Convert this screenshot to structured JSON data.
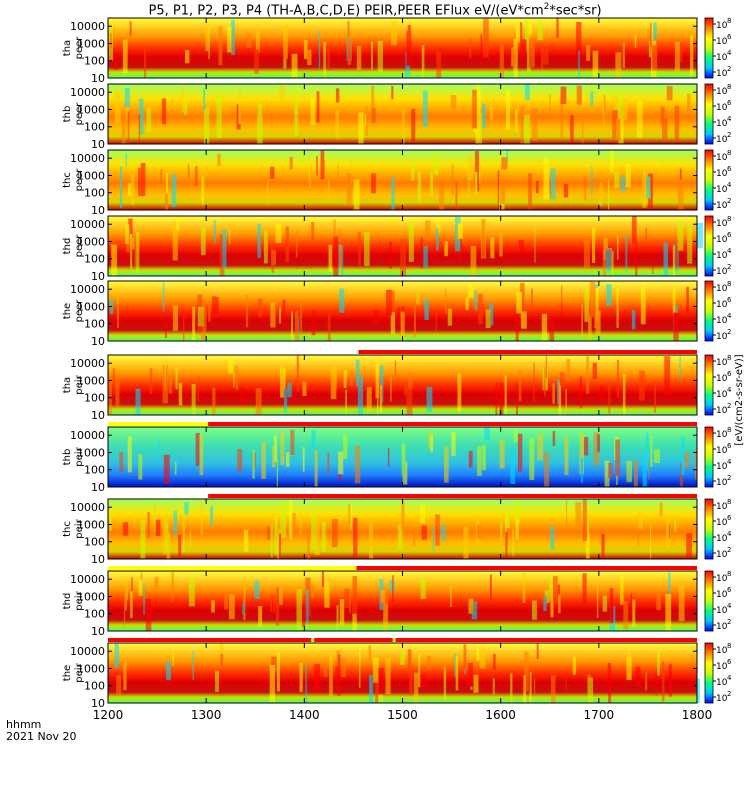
{
  "title": {
    "main": "P5, P1, P2, P3, P4 (TH-A,B,C,D,E) PEIR,PEER EFlux eV/(eV*cm",
    "sup": "2",
    "tail": "*sec*sr)"
  },
  "footer": {
    "time_label": "hhmm",
    "date_label": "2021 Nov 20"
  },
  "colorbar": {
    "unit_label": "[eV/(cm2-s-sr-eV)]",
    "tick_labels": [
      "10",
      "10",
      "10",
      "10"
    ],
    "tick_exponents": [
      "8",
      "6",
      "4",
      "2"
    ]
  },
  "chart_data": {
    "type": "heatmap",
    "x_axis": {
      "label": "hhmm",
      "range": [
        1200,
        1800
      ],
      "ticks": [
        1200,
        1300,
        1400,
        1500,
        1600,
        1700,
        1800
      ],
      "tick_labels": [
        "1200",
        "1300",
        "1400",
        "1500",
        "1600",
        "1700",
        "1800"
      ]
    },
    "y_axis": {
      "scale": "log",
      "range": [
        10,
        30000
      ],
      "ticks": [
        10,
        100,
        1000,
        10000
      ],
      "tick_labels": [
        "10",
        "100",
        "1000",
        "10000"
      ]
    },
    "color_scale": {
      "scale": "log",
      "range": [
        100,
        100000000
      ],
      "colors": [
        "#0000ff",
        "#00c8ff",
        "#00ff80",
        "#c8ff00",
        "#ffff00",
        "#ff8000",
        "#ff0000"
      ]
    },
    "panels": [
      {
        "probe": "tha",
        "species": "peer",
        "label": "tha peer",
        "baseline_level": "high",
        "flag_bar": []
      },
      {
        "probe": "thb",
        "species": "peer",
        "label": "thb peer",
        "baseline_level": "medium",
        "flag_bar": []
      },
      {
        "probe": "thc",
        "species": "peer",
        "label": "thc peer",
        "baseline_level": "medium",
        "flag_bar": []
      },
      {
        "probe": "thd",
        "species": "peer",
        "label": "thd peer",
        "baseline_level": "high",
        "flag_bar": []
      },
      {
        "probe": "the",
        "species": "peer",
        "label": "the peer",
        "baseline_level": "high",
        "flag_bar": []
      },
      {
        "probe": "tha",
        "species": "peir",
        "label": "tha peir",
        "baseline_level": "high",
        "flag_bar": [
          {
            "start": 1200,
            "end": 1455,
            "color": "#ffffff"
          },
          {
            "start": 1455,
            "end": 1800,
            "color": "#ff0000"
          }
        ]
      },
      {
        "probe": "thb",
        "species": "peir",
        "label": "thb peir",
        "baseline_level": "low",
        "flag_bar": [
          {
            "start": 1200,
            "end": 1302,
            "color": "#ffff00"
          },
          {
            "start": 1302,
            "end": 1800,
            "color": "#ff0000"
          }
        ]
      },
      {
        "probe": "thc",
        "species": "peir",
        "label": "thc peir",
        "baseline_level": "medium",
        "flag_bar": [
          {
            "start": 1200,
            "end": 1302,
            "color": "#ffffff"
          },
          {
            "start": 1302,
            "end": 1800,
            "color": "#ff0000"
          }
        ]
      },
      {
        "probe": "thd",
        "species": "peir",
        "label": "thd peir",
        "baseline_level": "high",
        "flag_bar": [
          {
            "start": 1200,
            "end": 1453,
            "color": "#ffff00"
          },
          {
            "start": 1453,
            "end": 1800,
            "color": "#ff0000"
          }
        ]
      },
      {
        "probe": "the",
        "species": "peir",
        "label": "the peir",
        "baseline_level": "high",
        "flag_bar": [
          {
            "start": 1200,
            "end": 1800,
            "color": "#ff0000"
          },
          {
            "start": 1407,
            "end": 1410,
            "color": "#ffff00"
          },
          {
            "start": 1490,
            "end": 1493,
            "color": "#ffff00"
          }
        ]
      }
    ]
  }
}
